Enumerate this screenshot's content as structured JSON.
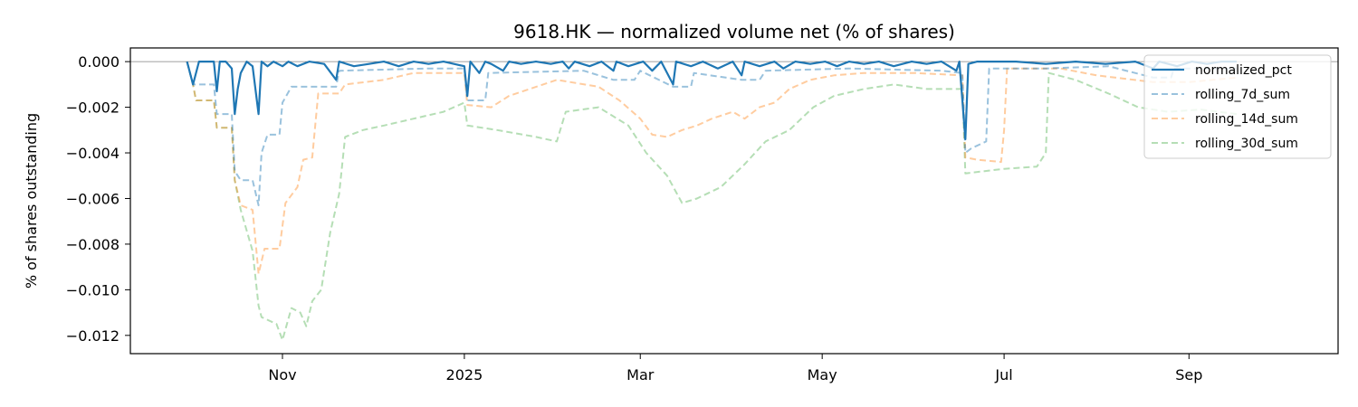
{
  "chart_data": {
    "type": "line",
    "title": "9618.HK — normalized volume net (% of shares)",
    "xlabel": "",
    "ylabel": "% of shares outstanding",
    "x_range": [
      "2024-09-11",
      "2025-10-21"
    ],
    "ylim": [
      -0.0128,
      0.0006
    ],
    "grid": false,
    "legend_position": "top-right",
    "zero_line": true,
    "x_ticks": [
      {
        "date": "2024-11-01",
        "label": "Nov"
      },
      {
        "date": "2025-01-01",
        "label": "2025"
      },
      {
        "date": "2025-03-01",
        "label": "Mar"
      },
      {
        "date": "2025-05-01",
        "label": "May"
      },
      {
        "date": "2025-07-01",
        "label": "Jul"
      },
      {
        "date": "2025-09-01",
        "label": "Sep"
      }
    ],
    "y_ticks": [
      {
        "value": 0.0,
        "label": "0.000"
      },
      {
        "value": -0.002,
        "label": "−0.002"
      },
      {
        "value": -0.004,
        "label": "−0.004"
      },
      {
        "value": -0.006,
        "label": "−0.006"
      },
      {
        "value": -0.008,
        "label": "−0.008"
      },
      {
        "value": -0.01,
        "label": "−0.010"
      },
      {
        "value": -0.012,
        "label": "−0.012"
      }
    ],
    "series": [
      {
        "name": "normalized_pct",
        "color": "#1f77b4",
        "style": "solid",
        "opacity": 1.0,
        "points": [
          [
            "2024-09-30",
            0.0
          ],
          [
            "2024-10-02",
            -0.001
          ],
          [
            "2024-10-04",
            0.0
          ],
          [
            "2024-10-07",
            0.0
          ],
          [
            "2024-10-09",
            0.0
          ],
          [
            "2024-10-10",
            -0.0013
          ],
          [
            "2024-10-11",
            0.0
          ],
          [
            "2024-10-13",
            0.0
          ],
          [
            "2024-10-15",
            -0.0003
          ],
          [
            "2024-10-16",
            -0.0023
          ],
          [
            "2024-10-17",
            -0.0012
          ],
          [
            "2024-10-18",
            -0.0005
          ],
          [
            "2024-10-20",
            0.0
          ],
          [
            "2024-10-22",
            -0.0002
          ],
          [
            "2024-10-24",
            -0.0023
          ],
          [
            "2024-10-25",
            0.0
          ],
          [
            "2024-10-27",
            -0.0002
          ],
          [
            "2024-10-29",
            0.0
          ],
          [
            "2024-11-01",
            -0.0002
          ],
          [
            "2024-11-03",
            0.0
          ],
          [
            "2024-11-06",
            -0.0002
          ],
          [
            "2024-11-10",
            0.0
          ],
          [
            "2024-11-15",
            -0.0001
          ],
          [
            "2024-11-19",
            -0.0008
          ],
          [
            "2024-11-20",
            0.0
          ],
          [
            "2024-11-25",
            -0.0002
          ],
          [
            "2024-11-30",
            -0.0001
          ],
          [
            "2024-12-05",
            0.0
          ],
          [
            "2024-12-10",
            -0.0002
          ],
          [
            "2024-12-15",
            0.0
          ],
          [
            "2024-12-20",
            -0.0001
          ],
          [
            "2024-12-25",
            0.0
          ],
          [
            "2025-01-01",
            -0.0002
          ],
          [
            "2025-01-02",
            -0.0015
          ],
          [
            "2025-01-03",
            0.0
          ],
          [
            "2025-01-06",
            -0.0005
          ],
          [
            "2025-01-08",
            0.0
          ],
          [
            "2025-01-10",
            -0.0001
          ],
          [
            "2025-01-14",
            -0.0004
          ],
          [
            "2025-01-16",
            0.0
          ],
          [
            "2025-01-20",
            -0.0001
          ],
          [
            "2025-01-25",
            0.0
          ],
          [
            "2025-01-30",
            -0.0001
          ],
          [
            "2025-02-03",
            0.0
          ],
          [
            "2025-02-05",
            -0.0003
          ],
          [
            "2025-02-07",
            0.0
          ],
          [
            "2025-02-12",
            -0.0002
          ],
          [
            "2025-02-16",
            0.0
          ],
          [
            "2025-02-20",
            -0.0004
          ],
          [
            "2025-02-21",
            0.0
          ],
          [
            "2025-02-25",
            -0.0002
          ],
          [
            "2025-03-02",
            0.0
          ],
          [
            "2025-03-05",
            -0.0004
          ],
          [
            "2025-03-08",
            0.0
          ],
          [
            "2025-03-12",
            -0.001
          ],
          [
            "2025-03-13",
            0.0
          ],
          [
            "2025-03-18",
            -0.0002
          ],
          [
            "2025-03-22",
            0.0
          ],
          [
            "2025-03-27",
            -0.0003
          ],
          [
            "2025-04-01",
            0.0
          ],
          [
            "2025-04-04",
            -0.0006
          ],
          [
            "2025-04-05",
            0.0
          ],
          [
            "2025-04-10",
            -0.0002
          ],
          [
            "2025-04-15",
            0.0
          ],
          [
            "2025-04-18",
            -0.0003
          ],
          [
            "2025-04-22",
            0.0
          ],
          [
            "2025-04-27",
            -0.0001
          ],
          [
            "2025-05-02",
            0.0
          ],
          [
            "2025-05-06",
            -0.0002
          ],
          [
            "2025-05-10",
            0.0
          ],
          [
            "2025-05-15",
            -0.0001
          ],
          [
            "2025-05-20",
            0.0
          ],
          [
            "2025-05-25",
            -0.0002
          ],
          [
            "2025-05-31",
            0.0
          ],
          [
            "2025-06-05",
            -0.0001
          ],
          [
            "2025-06-10",
            0.0
          ],
          [
            "2025-06-15",
            -0.0004
          ],
          [
            "2025-06-16",
            0.0
          ],
          [
            "2025-06-18",
            -0.0034
          ],
          [
            "2025-06-19",
            -0.0001
          ],
          [
            "2025-06-22",
            0.0
          ],
          [
            "2025-06-26",
            0.0
          ],
          [
            "2025-07-05",
            0.0
          ],
          [
            "2025-07-15",
            -0.0001
          ],
          [
            "2025-07-25",
            0.0
          ],
          [
            "2025-08-04",
            -0.0001
          ],
          [
            "2025-08-14",
            0.0
          ],
          [
            "2025-08-20",
            -0.0003
          ],
          [
            "2025-08-22",
            0.0
          ],
          [
            "2025-08-28",
            -0.0002
          ],
          [
            "2025-09-02",
            0.0
          ],
          [
            "2025-09-07",
            -0.0001
          ],
          [
            "2025-09-12",
            0.0
          ],
          [
            "2025-09-17",
            0.0
          ]
        ]
      },
      {
        "name": "rolling_7d_sum",
        "color": "#1f77b4",
        "style": "dashed",
        "opacity": 0.45,
        "points": [
          [
            "2024-09-30",
            0.0
          ],
          [
            "2024-10-02",
            -0.001
          ],
          [
            "2024-10-09",
            -0.001
          ],
          [
            "2024-10-10",
            -0.0023
          ],
          [
            "2024-10-15",
            -0.0023
          ],
          [
            "2024-10-16",
            -0.0048
          ],
          [
            "2024-10-18",
            -0.0052
          ],
          [
            "2024-10-22",
            -0.0052
          ],
          [
            "2024-10-24",
            -0.0063
          ],
          [
            "2024-10-25",
            -0.004
          ],
          [
            "2024-10-27",
            -0.0032
          ],
          [
            "2024-10-31",
            -0.0032
          ],
          [
            "2024-11-01",
            -0.0018
          ],
          [
            "2024-11-04",
            -0.0011
          ],
          [
            "2024-11-19",
            -0.0011
          ],
          [
            "2024-11-20",
            -0.0004
          ],
          [
            "2024-12-20",
            -0.0003
          ],
          [
            "2025-01-01",
            -0.0003
          ],
          [
            "2025-01-02",
            -0.0017
          ],
          [
            "2025-01-08",
            -0.0017
          ],
          [
            "2025-01-09",
            -0.0005
          ],
          [
            "2025-02-10",
            -0.0004
          ],
          [
            "2025-02-20",
            -0.0008
          ],
          [
            "2025-02-27",
            -0.0008
          ],
          [
            "2025-03-01",
            -0.0004
          ],
          [
            "2025-03-12",
            -0.0011
          ],
          [
            "2025-03-18",
            -0.0011
          ],
          [
            "2025-03-19",
            -0.0005
          ],
          [
            "2025-04-04",
            -0.0008
          ],
          [
            "2025-04-10",
            -0.0008
          ],
          [
            "2025-04-12",
            -0.0004
          ],
          [
            "2025-05-10",
            -0.0003
          ],
          [
            "2025-06-10",
            -0.0004
          ],
          [
            "2025-06-17",
            -0.0005
          ],
          [
            "2025-06-18",
            -0.004
          ],
          [
            "2025-06-20",
            -0.0038
          ],
          [
            "2025-06-25",
            -0.0035
          ],
          [
            "2025-06-26",
            -0.0003
          ],
          [
            "2025-07-15",
            -0.0003
          ],
          [
            "2025-08-05",
            -0.0002
          ],
          [
            "2025-08-20",
            -0.0007
          ],
          [
            "2025-08-26",
            -0.0007
          ],
          [
            "2025-08-27",
            -0.0003
          ],
          [
            "2025-09-17",
            -0.0003
          ]
        ]
      },
      {
        "name": "rolling_14d_sum",
        "color": "#ff7f0e",
        "style": "dashed",
        "opacity": 0.4,
        "points": [
          [
            "2024-09-30",
            0.0
          ],
          [
            "2024-10-02",
            -0.001
          ],
          [
            "2024-10-03",
            -0.0017
          ],
          [
            "2024-10-09",
            -0.0017
          ],
          [
            "2024-10-10",
            -0.0029
          ],
          [
            "2024-10-15",
            -0.0029
          ],
          [
            "2024-10-16",
            -0.0052
          ],
          [
            "2024-10-18",
            -0.0063
          ],
          [
            "2024-10-22",
            -0.0065
          ],
          [
            "2024-10-24",
            -0.0093
          ],
          [
            "2024-10-26",
            -0.0082
          ],
          [
            "2024-10-31",
            -0.0082
          ],
          [
            "2024-11-02",
            -0.0062
          ],
          [
            "2024-11-06",
            -0.0055
          ],
          [
            "2024-11-08",
            -0.0043
          ],
          [
            "2024-11-11",
            -0.0042
          ],
          [
            "2024-11-13",
            -0.0014
          ],
          [
            "2024-11-20",
            -0.0014
          ],
          [
            "2024-11-22",
            -0.001
          ],
          [
            "2024-12-05",
            -0.0008
          ],
          [
            "2024-12-15",
            -0.0005
          ],
          [
            "2025-01-01",
            -0.0005
          ],
          [
            "2025-01-02",
            -0.0019
          ],
          [
            "2025-01-10",
            -0.002
          ],
          [
            "2025-01-16",
            -0.0015
          ],
          [
            "2025-02-01",
            -0.0008
          ],
          [
            "2025-02-15",
            -0.0011
          ],
          [
            "2025-02-22",
            -0.0017
          ],
          [
            "2025-03-01",
            -0.0025
          ],
          [
            "2025-03-05",
            -0.0032
          ],
          [
            "2025-03-10",
            -0.0033
          ],
          [
            "2025-03-15",
            -0.003
          ],
          [
            "2025-03-20",
            -0.0028
          ],
          [
            "2025-03-25",
            -0.0025
          ],
          [
            "2025-04-01",
            -0.0022
          ],
          [
            "2025-04-05",
            -0.0025
          ],
          [
            "2025-04-10",
            -0.002
          ],
          [
            "2025-04-15",
            -0.0018
          ],
          [
            "2025-04-20",
            -0.0012
          ],
          [
            "2025-04-27",
            -0.0008
          ],
          [
            "2025-05-05",
            -0.0006
          ],
          [
            "2025-05-15",
            -0.0005
          ],
          [
            "2025-06-01",
            -0.0005
          ],
          [
            "2025-06-17",
            -0.0006
          ],
          [
            "2025-06-18",
            -0.0042
          ],
          [
            "2025-06-22",
            -0.0043
          ],
          [
            "2025-06-30",
            -0.0044
          ],
          [
            "2025-07-01",
            -0.003
          ],
          [
            "2025-07-02",
            -0.0003
          ],
          [
            "2025-07-20",
            -0.0003
          ],
          [
            "2025-08-01",
            -0.0006
          ],
          [
            "2025-08-20",
            -0.0009
          ],
          [
            "2025-09-01",
            -0.0009
          ],
          [
            "2025-09-17",
            -0.0007
          ]
        ]
      },
      {
        "name": "rolling_30d_sum",
        "color": "#2ca02c",
        "style": "dashed",
        "opacity": 0.35,
        "points": [
          [
            "2024-09-30",
            0.0
          ],
          [
            "2024-10-02",
            -0.001
          ],
          [
            "2024-10-03",
            -0.0017
          ],
          [
            "2024-10-09",
            -0.0017
          ],
          [
            "2024-10-10",
            -0.0029
          ],
          [
            "2024-10-15",
            -0.0029
          ],
          [
            "2024-10-16",
            -0.0052
          ],
          [
            "2024-10-18",
            -0.0065
          ],
          [
            "2024-10-22",
            -0.0083
          ],
          [
            "2024-10-24",
            -0.0107
          ],
          [
            "2024-10-25",
            -0.0112
          ],
          [
            "2024-10-30",
            -0.0115
          ],
          [
            "2024-11-01",
            -0.0122
          ],
          [
            "2024-11-04",
            -0.0108
          ],
          [
            "2024-11-07",
            -0.011
          ],
          [
            "2024-11-09",
            -0.0116
          ],
          [
            "2024-11-11",
            -0.0105
          ],
          [
            "2024-11-14",
            -0.01
          ],
          [
            "2024-11-17",
            -0.0075
          ],
          [
            "2024-11-20",
            -0.0058
          ],
          [
            "2024-11-22",
            -0.0033
          ],
          [
            "2024-11-28",
            -0.003
          ],
          [
            "2024-12-05",
            -0.0028
          ],
          [
            "2024-12-15",
            -0.0025
          ],
          [
            "2024-12-25",
            -0.0022
          ],
          [
            "2025-01-01",
            -0.0018
          ],
          [
            "2025-01-02",
            -0.0028
          ],
          [
            "2025-01-12",
            -0.003
          ],
          [
            "2025-01-25",
            -0.0033
          ],
          [
            "2025-02-01",
            -0.0035
          ],
          [
            "2025-02-04",
            -0.0022
          ],
          [
            "2025-02-15",
            -0.002
          ],
          [
            "2025-02-25",
            -0.0028
          ],
          [
            "2025-03-03",
            -0.004
          ],
          [
            "2025-03-10",
            -0.005
          ],
          [
            "2025-03-15",
            -0.0062
          ],
          [
            "2025-03-20",
            -0.006
          ],
          [
            "2025-03-28",
            -0.0055
          ],
          [
            "2025-04-05",
            -0.0045
          ],
          [
            "2025-04-12",
            -0.0035
          ],
          [
            "2025-04-20",
            -0.003
          ],
          [
            "2025-04-28",
            -0.002
          ],
          [
            "2025-05-05",
            -0.0015
          ],
          [
            "2025-05-15",
            -0.0012
          ],
          [
            "2025-05-25",
            -0.001
          ],
          [
            "2025-06-05",
            -0.0012
          ],
          [
            "2025-06-17",
            -0.0012
          ],
          [
            "2025-06-18",
            -0.0049
          ],
          [
            "2025-07-01",
            -0.0047
          ],
          [
            "2025-07-12",
            -0.0046
          ],
          [
            "2025-07-15",
            -0.004
          ],
          [
            "2025-07-16",
            -0.0005
          ],
          [
            "2025-07-25",
            -0.0008
          ],
          [
            "2025-08-05",
            -0.0014
          ],
          [
            "2025-08-15",
            -0.002
          ],
          [
            "2025-08-25",
            -0.0022
          ],
          [
            "2025-09-05",
            -0.0021
          ],
          [
            "2025-09-17",
            -0.0023
          ]
        ]
      }
    ]
  }
}
